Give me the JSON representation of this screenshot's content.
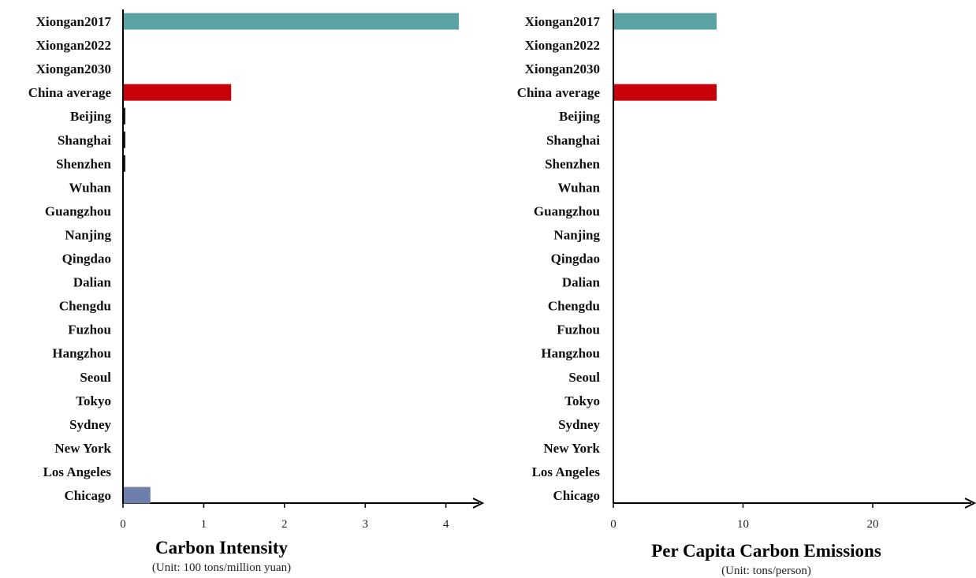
{
  "chart_data": [
    {
      "type": "bar",
      "orientation": "horizontal",
      "categories": [
        "Xiongan2017",
        "Xiongan2022",
        "Xiongan2030",
        "China average",
        "Beijing",
        "Shanghai",
        "Shenzhen",
        "Wuhan",
        "Guangzhou",
        "Nanjing",
        "Qingdao",
        "Dalian",
        "Chengdu",
        "Fuzhou",
        "Hangzhou",
        "Seoul",
        "Tokyo",
        "Sydney",
        "New York",
        "Los Angeles",
        "Chicago"
      ],
      "values": [
        4.15,
        0,
        0,
        1.33,
        0.02,
        0.02,
        0.02,
        0,
        0,
        0,
        0,
        0,
        0,
        0,
        0,
        0,
        0,
        0,
        0,
        0,
        0.33
      ],
      "bar_colors": [
        "#5ba3a3",
        "#5ba3a3",
        "#5ba3a3",
        "#c8000a",
        "#1a1a1a",
        "#1a1a1a",
        "#1a1a1a",
        "#1a1a1a",
        "#1a1a1a",
        "#1a1a1a",
        "#1a1a1a",
        "#1a1a1a",
        "#1a1a1a",
        "#1a1a1a",
        "#1a1a1a",
        "#6f7fad",
        "#6f7fad",
        "#6f7fad",
        "#6f7fad",
        "#6f7fad",
        "#6f7fad"
      ],
      "xlim": [
        0,
        4.5
      ],
      "xticks": [
        0,
        1,
        2,
        3,
        4
      ],
      "title": "Carbon Intensity",
      "subtitle": "(Unit: 100 tons/million yuan)",
      "grid": false
    },
    {
      "type": "bar",
      "orientation": "horizontal",
      "categories": [
        "Xiongan2017",
        "Xiongan2022",
        "Xiongan2030",
        "China average",
        "Beijing",
        "Shanghai",
        "Shenzhen",
        "Wuhan",
        "Guangzhou",
        "Nanjing",
        "Qingdao",
        "Dalian",
        "Chengdu",
        "Fuzhou",
        "Hangzhou",
        "Seoul",
        "Tokyo",
        "Sydney",
        "New York",
        "Los Angeles",
        "Chicago"
      ],
      "values": [
        7.9,
        0,
        0,
        7.9,
        0,
        0,
        0,
        0,
        0,
        0,
        0,
        0,
        0,
        0,
        0,
        0,
        0,
        0,
        0,
        0,
        0
      ],
      "bar_colors": [
        "#5ba3a3",
        "#5ba3a3",
        "#5ba3a3",
        "#c8000a",
        "#1a1a1a",
        "#1a1a1a",
        "#1a1a1a",
        "#1a1a1a",
        "#1a1a1a",
        "#1a1a1a",
        "#1a1a1a",
        "#1a1a1a",
        "#1a1a1a",
        "#1a1a1a",
        "#1a1a1a",
        "#6f7fad",
        "#6f7fad",
        "#6f7fad",
        "#6f7fad",
        "#6f7fad",
        "#6f7fad"
      ],
      "xlim": [
        0,
        27
      ],
      "xticks": [
        0,
        10,
        20
      ],
      "title": "Per Capita Carbon Emissions",
      "subtitle": "(Unit: tons/person)",
      "grid": false
    }
  ]
}
